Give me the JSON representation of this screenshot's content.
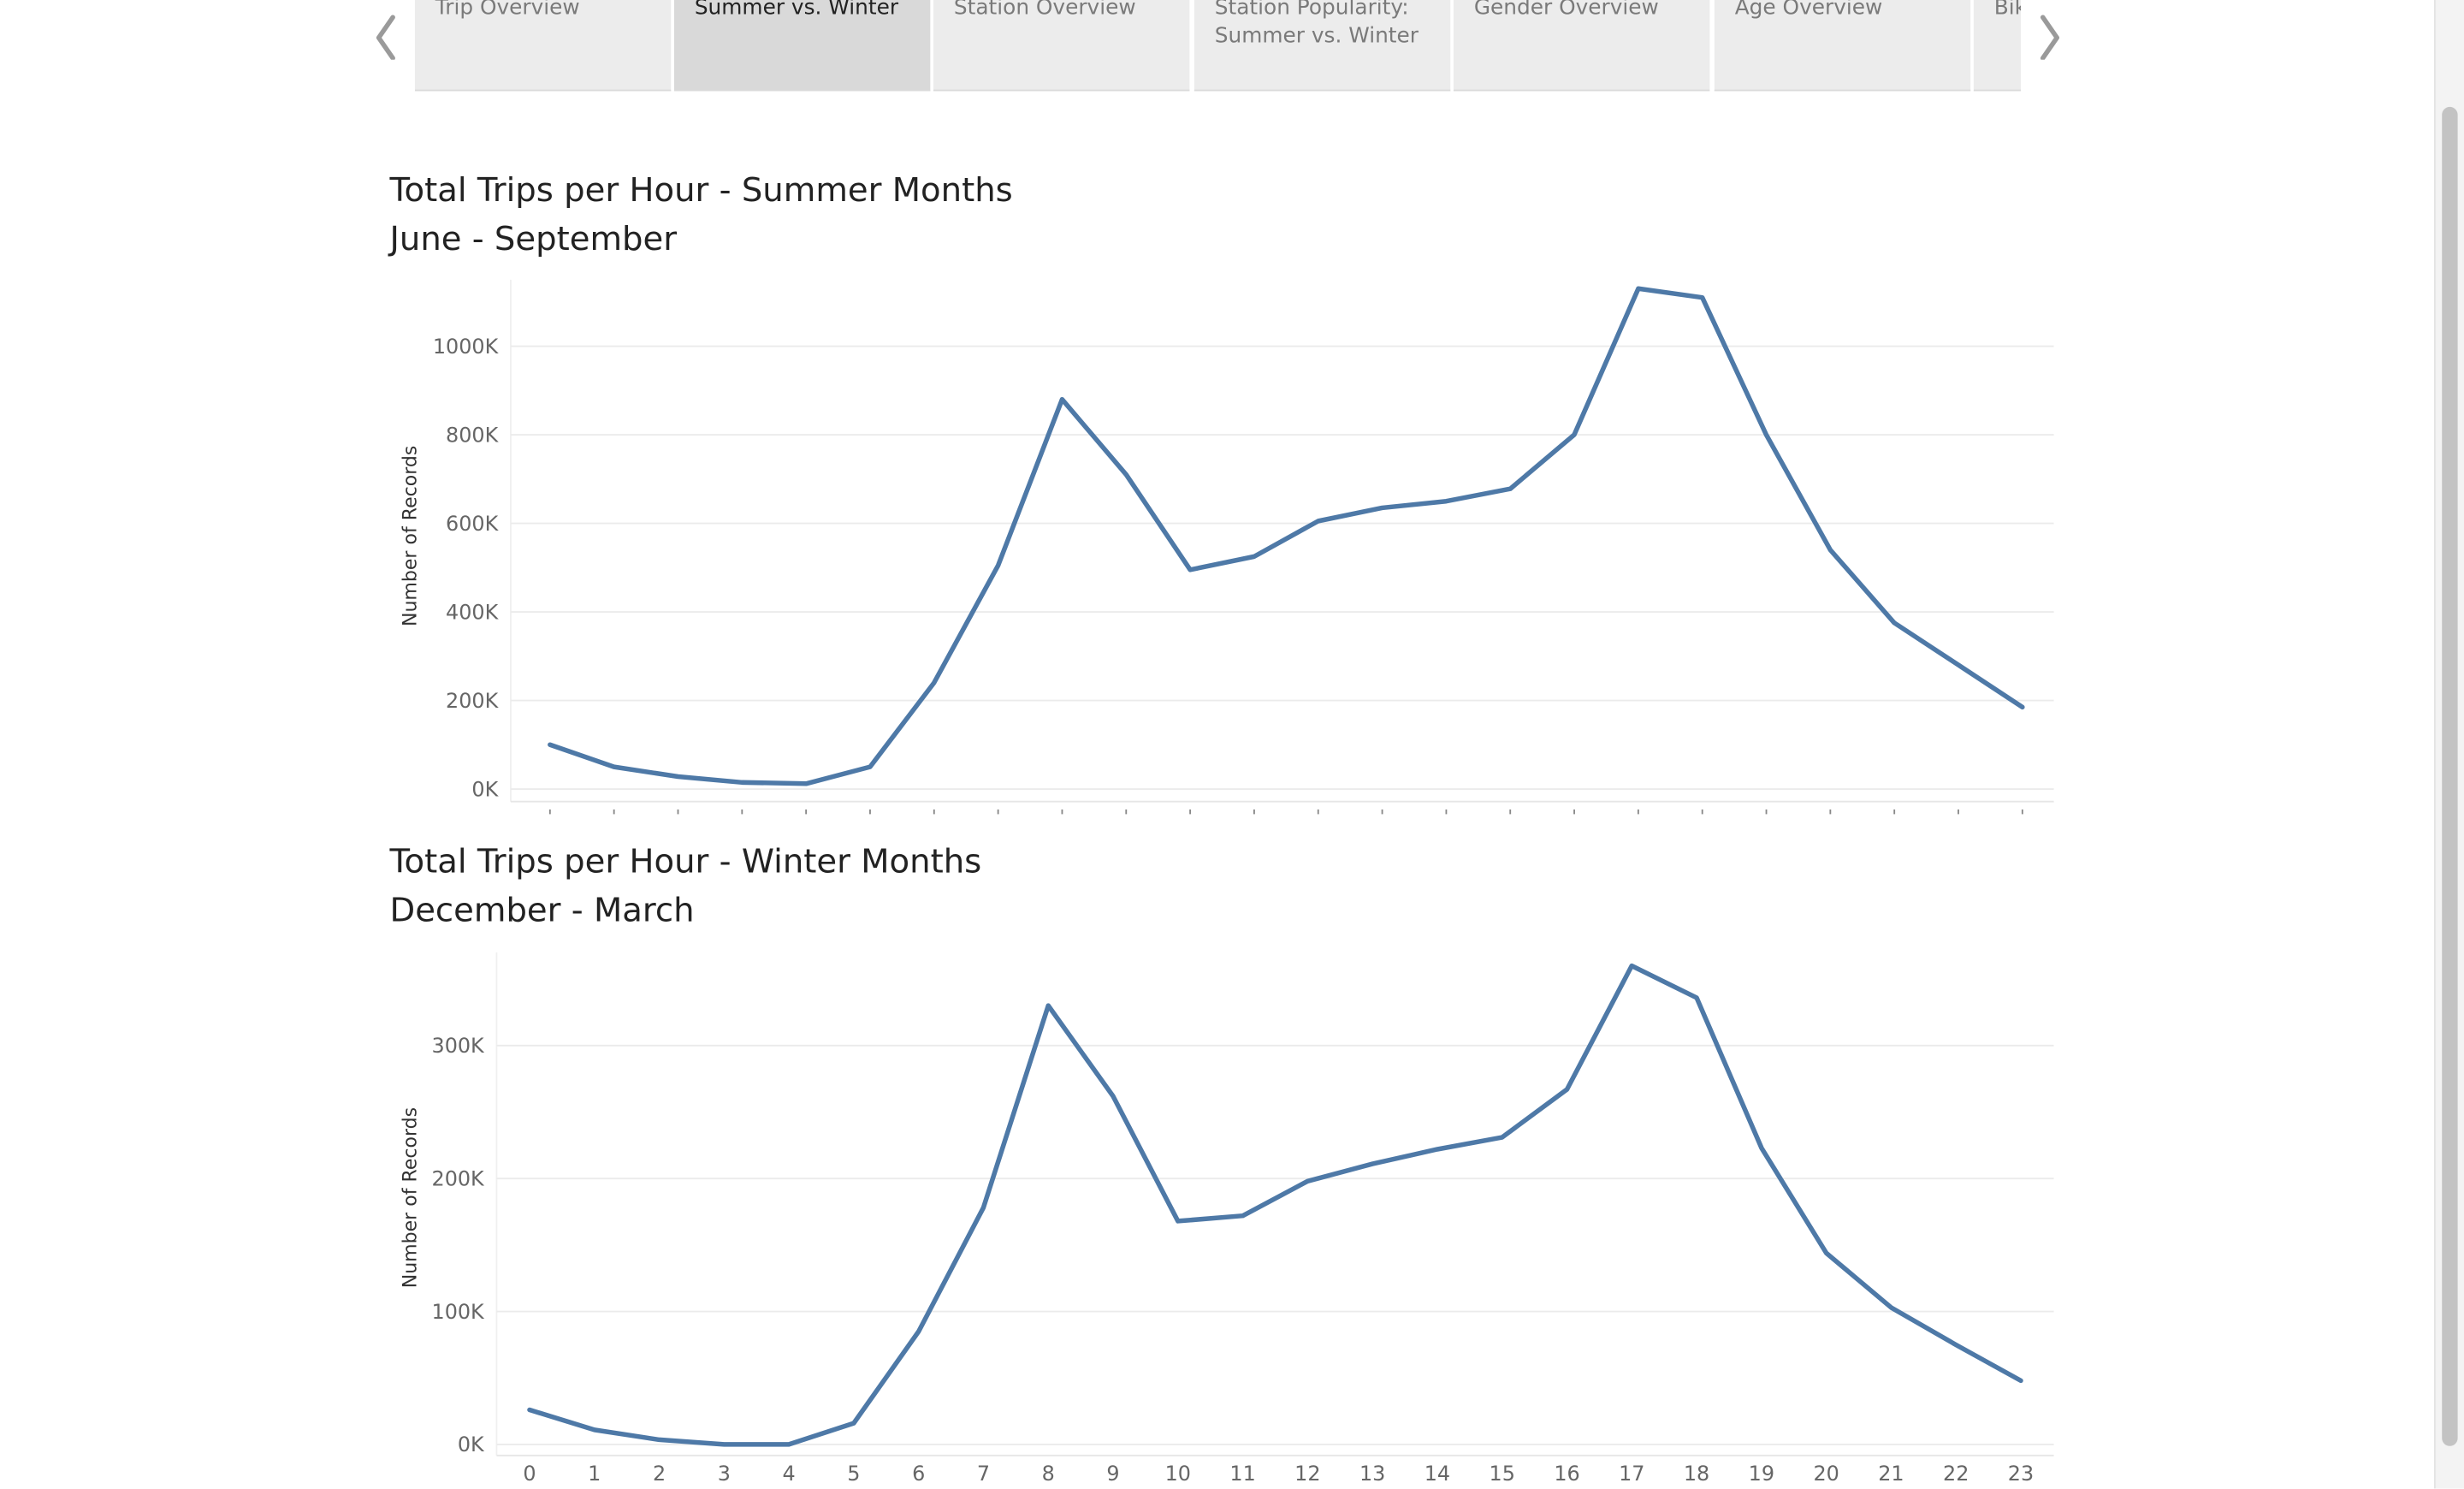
{
  "navigation": {
    "tabs": [
      {
        "label": "Trip Overview",
        "active": false
      },
      {
        "label": "Summer vs. Winter",
        "active": true
      },
      {
        "label": "Station Overview",
        "active": false
      },
      {
        "label": "Station Popularity: Summer vs. Winter",
        "active": false
      },
      {
        "label": "Gender Overview",
        "active": false
      },
      {
        "label": "Age Overview",
        "active": false
      },
      {
        "label": "Bik",
        "active": false
      }
    ],
    "prev_icon": "chevron-left-icon",
    "next_icon": "chevron-right-icon"
  },
  "colors": {
    "line": "#4e79a7",
    "grid": "#ebebeb",
    "tab_bg": "#ececec",
    "tab_active_bg": "#d9d9d9"
  },
  "chart_data": [
    {
      "type": "line",
      "title": "Total Trips per Hour - Summer Months",
      "subtitle": "June - September",
      "xlabel": "",
      "ylabel": "Number of Records",
      "x": [
        0,
        1,
        2,
        3,
        4,
        5,
        6,
        7,
        8,
        9,
        10,
        11,
        12,
        13,
        14,
        15,
        16,
        17,
        18,
        19,
        20,
        21,
        22,
        23
      ],
      "values": [
        100000,
        50000,
        28000,
        15000,
        12000,
        50000,
        240000,
        505000,
        880000,
        710000,
        495000,
        525000,
        605000,
        635000,
        650000,
        678000,
        800000,
        1130000,
        1110000,
        800000,
        540000,
        375000,
        280000,
        185000
      ],
      "ylim": [
        0,
        1150000
      ],
      "yticks": [
        0,
        200000,
        400000,
        600000,
        800000,
        1000000
      ],
      "ytick_labels": [
        "0K",
        "200K",
        "400K",
        "600K",
        "800K",
        "1000K"
      ],
      "x_tick_labels_shown": false,
      "grid": true,
      "legend": "none"
    },
    {
      "type": "line",
      "title": "Total Trips per Hour - Winter Months",
      "subtitle": "December - March",
      "xlabel": "",
      "ylabel": "Number of Records",
      "x": [
        0,
        1,
        2,
        3,
        4,
        5,
        6,
        7,
        8,
        9,
        10,
        11,
        12,
        13,
        14,
        15,
        16,
        17,
        18,
        19,
        20,
        21,
        22,
        23
      ],
      "x_tick_labels": [
        "0",
        "1",
        "2",
        "3",
        "4",
        "5",
        "6",
        "7",
        "8",
        "9",
        "10",
        "11",
        "12",
        "13",
        "14",
        "15",
        "16",
        "17",
        "18",
        "19",
        "20",
        "21",
        "22",
        "23"
      ],
      "values": [
        26000,
        11000,
        3500,
        0,
        0,
        16000,
        85000,
        178000,
        330000,
        262000,
        168000,
        172000,
        198000,
        211000,
        222000,
        231000,
        267000,
        360000,
        336000,
        223000,
        144000,
        103000,
        75000,
        48000
      ],
      "ylim": [
        0,
        370000
      ],
      "yticks": [
        0,
        100000,
        200000,
        300000
      ],
      "ytick_labels": [
        "0K",
        "100K",
        "200K",
        "300K"
      ],
      "grid": true,
      "legend": "none"
    }
  ]
}
